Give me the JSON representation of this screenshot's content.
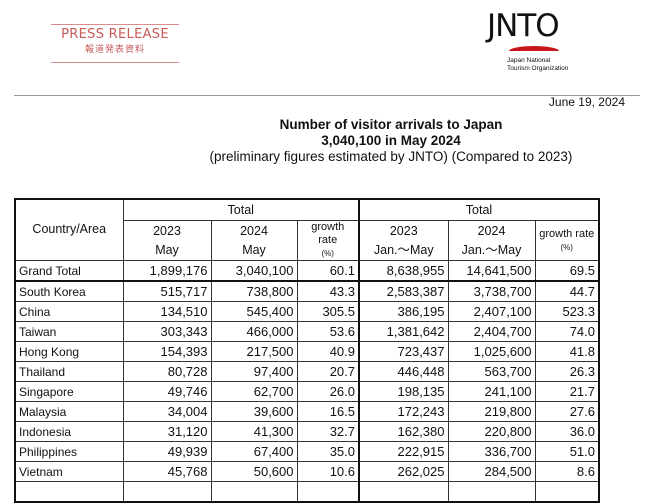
{
  "header": {
    "press_release_en": "PRESS RELEASE",
    "press_release_jp": "報道発表資料",
    "logo_text": "JNTO",
    "logo_org_line1": "Japan National",
    "logo_org_line2": "Tourism Organization",
    "accent_color": "#c8161d"
  },
  "date": "June 19, 2024",
  "title": {
    "line1": "Number of visitor arrivals to Japan",
    "line2": "3,040,100 in May 2024",
    "line3": "(preliminary figures estimated by JNTO) (Compared to 2023)"
  },
  "table": {
    "country_header": "Country/Area",
    "group1": "Total",
    "group2": "Total",
    "columns": [
      {
        "year": "2023",
        "period": "May"
      },
      {
        "year": "2024",
        "period": "May"
      },
      {
        "year": "growth rate",
        "period": "(%)"
      },
      {
        "year": "2023",
        "period": "Jan.～May"
      },
      {
        "year": "2024",
        "period": "Jan.～May"
      },
      {
        "year": "growth rate",
        "period": "(%)"
      }
    ],
    "rows": [
      [
        "Grand Total",
        "1,899,176",
        "3,040,100",
        "60.1",
        "8,638,955",
        "14,641,500",
        "69.5"
      ],
      [
        "South Korea",
        "515,717",
        "738,800",
        "43.3",
        "2,583,387",
        "3,738,700",
        "44.7"
      ],
      [
        "China",
        "134,510",
        "545,400",
        "305.5",
        "386,195",
        "2,407,100",
        "523.3"
      ],
      [
        "Taiwan",
        "303,343",
        "466,000",
        "53.6",
        "1,381,642",
        "2,404,700",
        "74.0"
      ],
      [
        "Hong Kong",
        "154,393",
        "217,500",
        "40.9",
        "723,437",
        "1,025,600",
        "41.8"
      ],
      [
        "Thailand",
        "80,728",
        "97,400",
        "20.7",
        "446,448",
        "563,700",
        "26.3"
      ],
      [
        "Singapore",
        "49,746",
        "62,700",
        "26.0",
        "198,135",
        "241,100",
        "21.7"
      ],
      [
        "Malaysia",
        "34,004",
        "39,600",
        "16.5",
        "172,243",
        "219,800",
        "27.6"
      ],
      [
        "Indonesia",
        "31,120",
        "41,300",
        "32.7",
        "162,380",
        "220,800",
        "36.0"
      ],
      [
        "Philippines",
        "49,939",
        "67,400",
        "35.0",
        "222,915",
        "336,700",
        "51.0"
      ],
      [
        "Vietnam",
        "45,768",
        "50,600",
        "10.6",
        "262,025",
        "284,500",
        "8.6"
      ]
    ]
  }
}
